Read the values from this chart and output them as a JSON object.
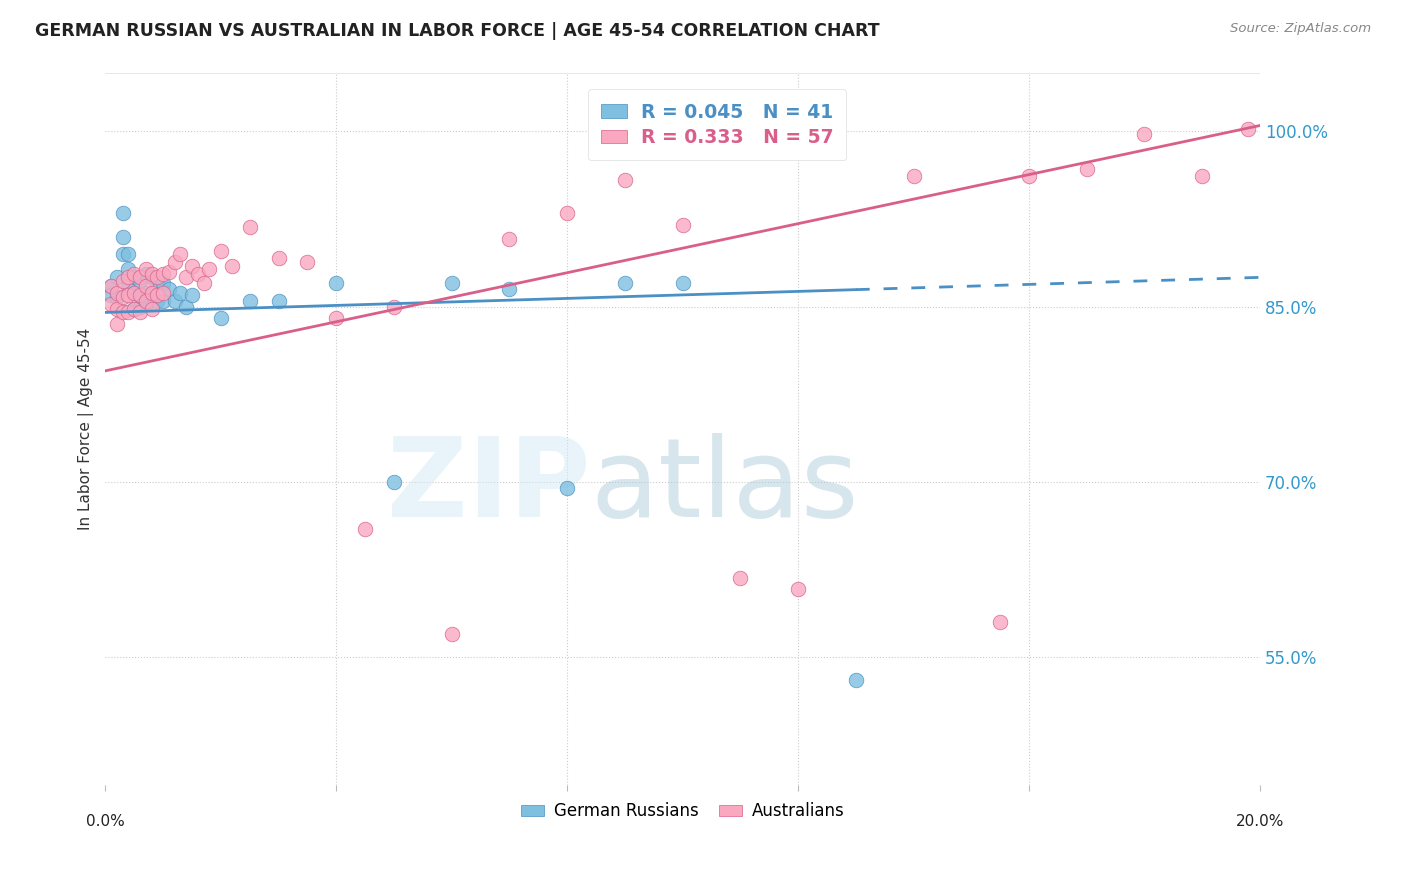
{
  "title": "GERMAN RUSSIAN VS AUSTRALIAN IN LABOR FORCE | AGE 45-54 CORRELATION CHART",
  "source": "Source: ZipAtlas.com",
  "ylabel": "In Labor Force | Age 45-54",
  "ytick_labels": [
    "55.0%",
    "70.0%",
    "85.0%",
    "100.0%"
  ],
  "ytick_values": [
    0.55,
    0.7,
    0.85,
    1.0
  ],
  "xmin": 0.0,
  "xmax": 0.2,
  "ymin": 0.44,
  "ymax": 1.05,
  "legend_blue_text": "R = 0.045   N = 41",
  "legend_pink_text": "R = 0.333   N = 57",
  "legend_label_blue": "German Russians",
  "legend_label_pink": "Australians",
  "blue_color": "#7fbfdf",
  "pink_color": "#f9a8c0",
  "trendline_blue_color": "#4a90c4",
  "trendline_pink_color": "#d95f8a",
  "blue_R": 0.045,
  "pink_R": 0.333,
  "blue_intercept": 0.845,
  "blue_slope": 0.15,
  "pink_intercept": 0.795,
  "pink_slope": 1.05,
  "blue_scatter_x": [
    0.001,
    0.001,
    0.002,
    0.002,
    0.003,
    0.003,
    0.003,
    0.004,
    0.004,
    0.004,
    0.005,
    0.005,
    0.005,
    0.006,
    0.006,
    0.006,
    0.007,
    0.007,
    0.007,
    0.008,
    0.008,
    0.009,
    0.009,
    0.01,
    0.01,
    0.011,
    0.012,
    0.013,
    0.014,
    0.015,
    0.02,
    0.025,
    0.03,
    0.04,
    0.05,
    0.06,
    0.07,
    0.08,
    0.09,
    0.1,
    0.13
  ],
  "blue_scatter_y": [
    0.868,
    0.86,
    0.875,
    0.858,
    0.93,
    0.91,
    0.895,
    0.895,
    0.882,
    0.868,
    0.875,
    0.862,
    0.848,
    0.872,
    0.86,
    0.85,
    0.878,
    0.862,
    0.852,
    0.875,
    0.86,
    0.87,
    0.855,
    0.87,
    0.855,
    0.865,
    0.855,
    0.862,
    0.85,
    0.86,
    0.84,
    0.855,
    0.855,
    0.87,
    0.7,
    0.87,
    0.865,
    0.695,
    0.87,
    0.87,
    0.53
  ],
  "pink_scatter_x": [
    0.001,
    0.001,
    0.002,
    0.002,
    0.002,
    0.003,
    0.003,
    0.003,
    0.004,
    0.004,
    0.004,
    0.005,
    0.005,
    0.005,
    0.006,
    0.006,
    0.006,
    0.007,
    0.007,
    0.007,
    0.008,
    0.008,
    0.008,
    0.009,
    0.009,
    0.01,
    0.01,
    0.011,
    0.012,
    0.013,
    0.014,
    0.015,
    0.016,
    0.017,
    0.018,
    0.02,
    0.022,
    0.025,
    0.03,
    0.035,
    0.04,
    0.045,
    0.05,
    0.06,
    0.07,
    0.08,
    0.09,
    0.1,
    0.11,
    0.12,
    0.14,
    0.155,
    0.16,
    0.17,
    0.18,
    0.19,
    0.198
  ],
  "pink_scatter_y": [
    0.868,
    0.852,
    0.862,
    0.848,
    0.835,
    0.872,
    0.858,
    0.845,
    0.875,
    0.86,
    0.845,
    0.878,
    0.862,
    0.848,
    0.875,
    0.86,
    0.845,
    0.882,
    0.868,
    0.855,
    0.878,
    0.862,
    0.848,
    0.875,
    0.86,
    0.878,
    0.862,
    0.88,
    0.888,
    0.895,
    0.875,
    0.885,
    0.878,
    0.87,
    0.882,
    0.898,
    0.885,
    0.918,
    0.892,
    0.888,
    0.84,
    0.66,
    0.85,
    0.57,
    0.908,
    0.93,
    0.958,
    0.92,
    0.618,
    0.608,
    0.962,
    0.58,
    0.962,
    0.968,
    0.998,
    0.962,
    1.002
  ]
}
